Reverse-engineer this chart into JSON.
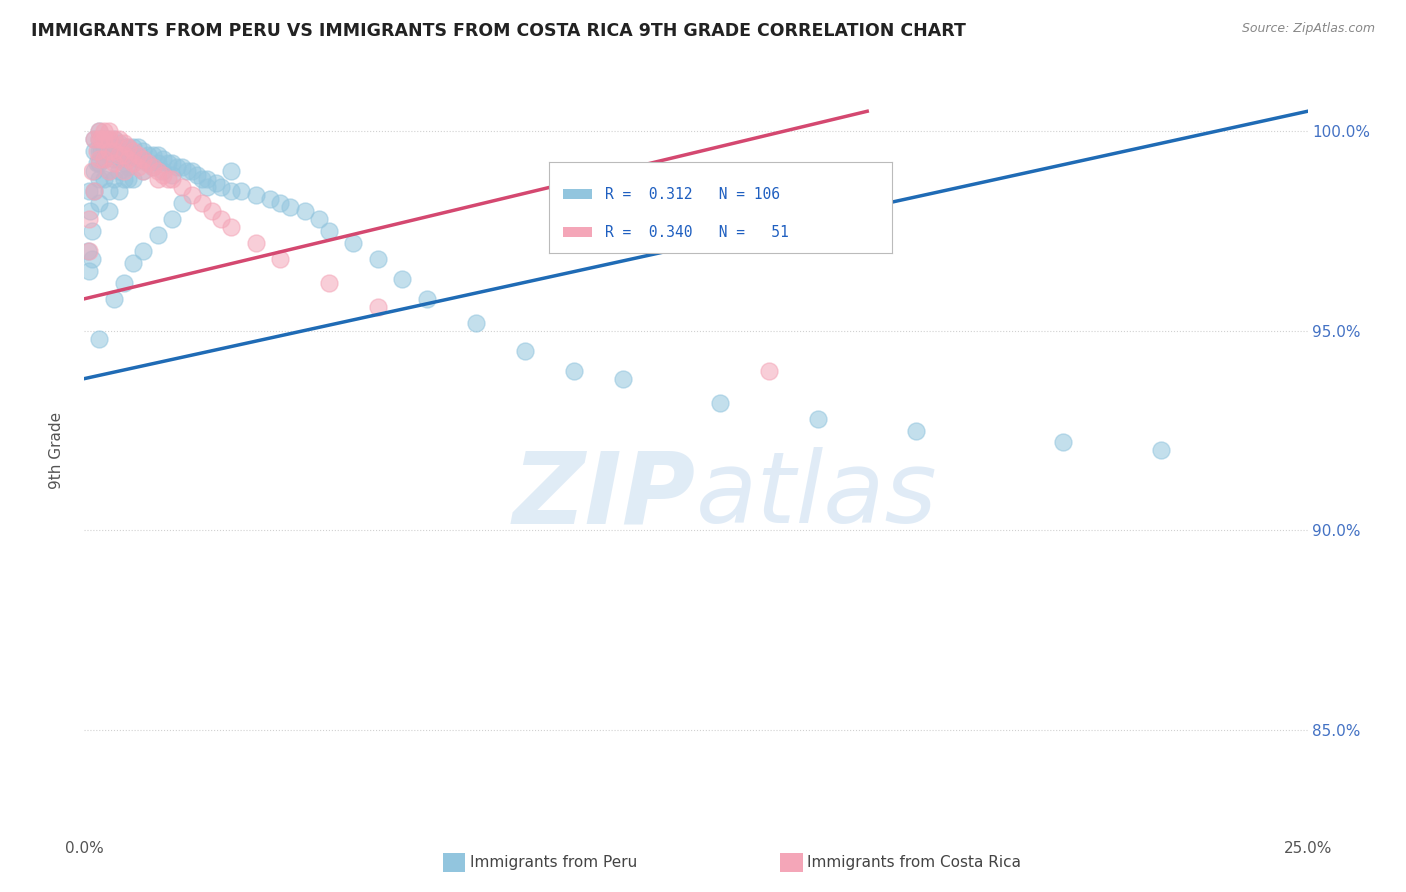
{
  "title": "IMMIGRANTS FROM PERU VS IMMIGRANTS FROM COSTA RICA 9TH GRADE CORRELATION CHART",
  "source": "Source: ZipAtlas.com",
  "ylabel": "9th Grade",
  "right_yticks": [
    "85.0%",
    "90.0%",
    "95.0%",
    "100.0%"
  ],
  "right_ytick_vals": [
    0.85,
    0.9,
    0.95,
    1.0
  ],
  "xlim": [
    0.0,
    0.25
  ],
  "ylim": [
    0.825,
    1.015
  ],
  "blue_color": "#92C5DE",
  "pink_color": "#F4A6B8",
  "trend_blue": "#1F6BB5",
  "trend_pink": "#D44870",
  "peru_x": [
    0.0008,
    0.001,
    0.001,
    0.0012,
    0.0015,
    0.0015,
    0.002,
    0.002,
    0.002,
    0.002,
    0.0025,
    0.003,
    0.003,
    0.003,
    0.003,
    0.003,
    0.003,
    0.0035,
    0.004,
    0.004,
    0.004,
    0.004,
    0.005,
    0.005,
    0.005,
    0.005,
    0.005,
    0.005,
    0.006,
    0.006,
    0.006,
    0.006,
    0.007,
    0.007,
    0.007,
    0.007,
    0.007,
    0.008,
    0.008,
    0.008,
    0.008,
    0.009,
    0.009,
    0.009,
    0.009,
    0.01,
    0.01,
    0.01,
    0.01,
    0.011,
    0.011,
    0.012,
    0.012,
    0.012,
    0.013,
    0.013,
    0.014,
    0.014,
    0.015,
    0.015,
    0.016,
    0.016,
    0.017,
    0.018,
    0.018,
    0.019,
    0.02,
    0.021,
    0.022,
    0.023,
    0.024,
    0.025,
    0.027,
    0.028,
    0.03,
    0.032,
    0.035,
    0.038,
    0.04,
    0.042,
    0.045,
    0.048,
    0.05,
    0.055,
    0.06,
    0.065,
    0.07,
    0.08,
    0.09,
    0.1,
    0.11,
    0.13,
    0.15,
    0.17,
    0.2,
    0.22,
    0.003,
    0.006,
    0.008,
    0.01,
    0.012,
    0.015,
    0.018,
    0.02,
    0.025,
    0.03
  ],
  "peru_y": [
    0.97,
    0.965,
    0.985,
    0.98,
    0.975,
    0.968,
    0.998,
    0.995,
    0.99,
    0.985,
    0.992,
    1.0,
    0.998,
    0.995,
    0.992,
    0.988,
    0.982,
    0.995,
    0.998,
    0.996,
    0.993,
    0.988,
    0.998,
    0.996,
    0.994,
    0.99,
    0.985,
    0.98,
    0.998,
    0.996,
    0.993,
    0.988,
    0.997,
    0.995,
    0.993,
    0.99,
    0.985,
    0.996,
    0.994,
    0.992,
    0.988,
    0.996,
    0.994,
    0.991,
    0.988,
    0.996,
    0.994,
    0.992,
    0.988,
    0.996,
    0.993,
    0.995,
    0.993,
    0.99,
    0.994,
    0.992,
    0.994,
    0.991,
    0.994,
    0.992,
    0.993,
    0.99,
    0.992,
    0.992,
    0.989,
    0.991,
    0.991,
    0.99,
    0.99,
    0.989,
    0.988,
    0.988,
    0.987,
    0.986,
    0.985,
    0.985,
    0.984,
    0.983,
    0.982,
    0.981,
    0.98,
    0.978,
    0.975,
    0.972,
    0.968,
    0.963,
    0.958,
    0.952,
    0.945,
    0.94,
    0.938,
    0.932,
    0.928,
    0.925,
    0.922,
    0.92,
    0.948,
    0.958,
    0.962,
    0.967,
    0.97,
    0.974,
    0.978,
    0.982,
    0.986,
    0.99
  ],
  "costa_rica_x": [
    0.001,
    0.001,
    0.0015,
    0.002,
    0.002,
    0.0025,
    0.003,
    0.003,
    0.003,
    0.0035,
    0.004,
    0.004,
    0.004,
    0.005,
    0.005,
    0.005,
    0.005,
    0.006,
    0.006,
    0.006,
    0.007,
    0.007,
    0.008,
    0.008,
    0.008,
    0.009,
    0.009,
    0.01,
    0.01,
    0.011,
    0.011,
    0.012,
    0.012,
    0.013,
    0.014,
    0.015,
    0.015,
    0.016,
    0.017,
    0.018,
    0.02,
    0.022,
    0.024,
    0.026,
    0.028,
    0.03,
    0.035,
    0.04,
    0.05,
    0.06,
    0.14
  ],
  "costa_rica_y": [
    0.978,
    0.97,
    0.99,
    0.998,
    0.985,
    0.995,
    1.0,
    0.998,
    0.993,
    0.998,
    1.0,
    0.998,
    0.993,
    1.0,
    0.998,
    0.995,
    0.99,
    0.998,
    0.995,
    0.992,
    0.998,
    0.994,
    0.997,
    0.994,
    0.99,
    0.996,
    0.993,
    0.995,
    0.992,
    0.994,
    0.991,
    0.993,
    0.99,
    0.992,
    0.991,
    0.99,
    0.988,
    0.989,
    0.988,
    0.988,
    0.986,
    0.984,
    0.982,
    0.98,
    0.978,
    0.976,
    0.972,
    0.968,
    0.962,
    0.956,
    0.94
  ],
  "blue_trend_x": [
    0.0,
    0.25
  ],
  "blue_trend_y": [
    0.938,
    1.005
  ],
  "pink_trend_x": [
    0.0,
    0.16
  ],
  "pink_trend_y": [
    0.958,
    1.005
  ]
}
